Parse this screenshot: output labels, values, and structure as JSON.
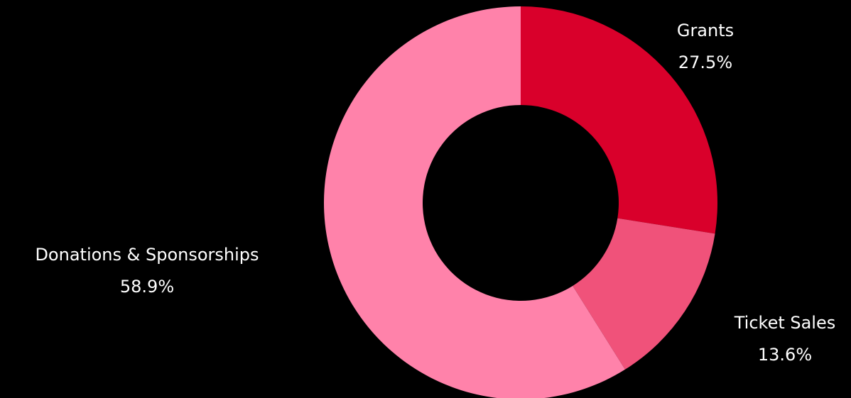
{
  "chart_data": {
    "type": "pie",
    "variant": "donut",
    "title": "",
    "slices": [
      {
        "label": "Grants",
        "value": 27.5,
        "value_label": "27.5%",
        "color": "#d9002b"
      },
      {
        "label": "Ticket Sales",
        "value": 13.6,
        "value_label": "13.6%",
        "color": "#f0527a"
      },
      {
        "label": "Donations & Sponsorships",
        "value": 58.9,
        "value_label": "58.9%",
        "color": "#ff82aa"
      }
    ],
    "start": "12 o'clock",
    "direction": "clockwise",
    "legend": "none",
    "background": "#000000"
  }
}
